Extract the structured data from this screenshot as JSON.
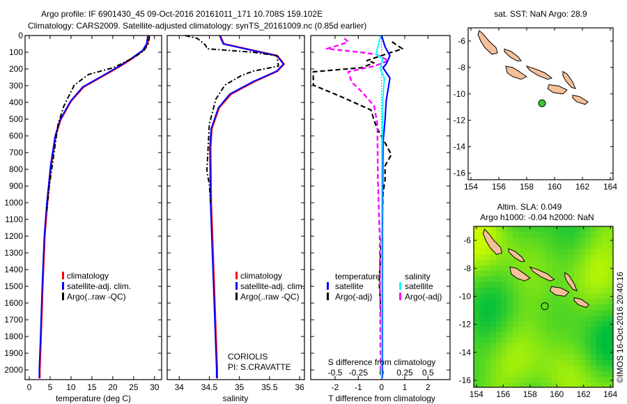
{
  "title": {
    "line1": "Argo profile: IF 6901430_45 09-Oct-2016 20161011_171 10.708S 159.102E",
    "line2": "Climatology: CARS2009. Satellite-adjusted climatology: synTS_20161009.nc (0.85d earlier)"
  },
  "colors": {
    "climatology": "#ff0000",
    "satellite": "#0000ff",
    "argo": "#000000",
    "salinity_satellite": "#00ffff",
    "salinity_argo": "#ff00ff",
    "land": "#f4c09a"
  },
  "chart_data": [
    {
      "type": "line",
      "title": "",
      "xlabel": "temperature (deg C)",
      "ylabel": "",
      "xlim": [
        -1,
        31.7
      ],
      "ylim": [
        2058,
        0
      ],
      "xticks": [
        0,
        5,
        10,
        15,
        20,
        25,
        30
      ],
      "yticks": [
        0,
        100,
        200,
        300,
        400,
        500,
        600,
        700,
        800,
        900,
        1000,
        1100,
        1200,
        1300,
        1400,
        1500,
        1600,
        1700,
        1800,
        1900,
        2000
      ],
      "legend": [
        "climatology",
        "satellite-adj. clim.",
        "Argo(..raw -QC)"
      ],
      "series": [
        {
          "name": "climatology",
          "points": [
            [
              28.6,
              0
            ],
            [
              28.3,
              50
            ],
            [
              27.3,
              90
            ],
            [
              26.7,
              100
            ],
            [
              24.5,
              140
            ],
            [
              21.8,
              183
            ],
            [
              16.8,
              254
            ],
            [
              13,
              308
            ],
            [
              10,
              392
            ],
            [
              7.5,
              504
            ],
            [
              6.3,
              600
            ],
            [
              5.2,
              779
            ],
            [
              4.3,
              1004
            ],
            [
              3.7,
              1200
            ],
            [
              3.2,
              1500
            ],
            [
              2.8,
              1800
            ],
            [
              2.5,
              2000
            ],
            [
              2.5,
              2050
            ]
          ]
        },
        {
          "name": "satellite-adj. clim.",
          "points": [
            [
              28.4,
              0
            ],
            [
              28.1,
              50
            ],
            [
              27.1,
              90
            ],
            [
              26.5,
              100
            ],
            [
              24.3,
              140
            ],
            [
              21.6,
              183
            ],
            [
              16.6,
              254
            ],
            [
              12.8,
              308
            ],
            [
              9.9,
              392
            ],
            [
              7.4,
              504
            ],
            [
              6.2,
              600
            ],
            [
              5.1,
              779
            ],
            [
              4.2,
              1004
            ],
            [
              3.6,
              1200
            ],
            [
              3.1,
              1500
            ],
            [
              2.7,
              1800
            ],
            [
              2.4,
              2000
            ],
            [
              2.4,
              2050
            ]
          ]
        },
        {
          "name": "Argo(..raw -QC)",
          "points": [
            [
              28.8,
              5
            ],
            [
              28.5,
              50
            ],
            [
              27.5,
              90
            ],
            [
              25.2,
              129
            ],
            [
              20.2,
              192
            ],
            [
              14.2,
              233
            ],
            [
              10.8,
              296
            ],
            [
              8.3,
              421
            ],
            [
              6.9,
              529
            ],
            [
              5.8,
              725
            ],
            [
              4.8,
              900
            ],
            [
              4.2,
              1050
            ]
          ]
        }
      ]
    },
    {
      "type": "line",
      "xlabel": "salinity",
      "xlim": [
        33.8,
        36.08
      ],
      "ylim": [
        2058,
        0
      ],
      "xticks": [
        34,
        34.5,
        35,
        35.5,
        36
      ],
      "legend": [
        "climatology",
        "satellite-adj. clim.",
        "Argo(..raw -QC)"
      ],
      "annotation": [
        "CORIOLIS",
        "PI: S.CRAVATTE"
      ],
      "series": [
        {
          "name": "climatology",
          "points": [
            [
              34.68,
              0
            ],
            [
              34.74,
              50
            ],
            [
              35.24,
              90
            ],
            [
              35.63,
              121
            ],
            [
              35.74,
              171
            ],
            [
              35.63,
              213
            ],
            [
              35.25,
              275
            ],
            [
              34.86,
              350
            ],
            [
              34.66,
              433
            ],
            [
              34.54,
              558
            ],
            [
              34.52,
              671
            ],
            [
              34.53,
              1004
            ],
            [
              34.56,
              1300
            ],
            [
              34.6,
              1700
            ],
            [
              34.63,
              2000
            ],
            [
              34.63,
              2050
            ]
          ]
        },
        {
          "name": "satellite-adj. clim.",
          "points": [
            [
              34.67,
              0
            ],
            [
              34.73,
              50
            ],
            [
              35.23,
              90
            ],
            [
              35.62,
              121
            ],
            [
              35.73,
              171
            ],
            [
              35.62,
              213
            ],
            [
              35.23,
              275
            ],
            [
              34.84,
              350
            ],
            [
              34.65,
              433
            ],
            [
              34.53,
              558
            ],
            [
              34.51,
              671
            ],
            [
              34.52,
              1004
            ],
            [
              34.55,
              1300
            ],
            [
              34.59,
              1700
            ],
            [
              34.62,
              2000
            ],
            [
              34.62,
              2050
            ]
          ]
        },
        {
          "name": "Argo(..raw -QC)",
          "points": [
            [
              34.1,
              0
            ],
            [
              34.3,
              17
            ],
            [
              34.44,
              58
            ],
            [
              34.46,
              79
            ],
            [
              35.23,
              100
            ],
            [
              35.62,
              121
            ],
            [
              35.65,
              183
            ],
            [
              35.23,
              213
            ],
            [
              35.04,
              238
            ],
            [
              34.76,
              296
            ],
            [
              34.61,
              379
            ],
            [
              34.5,
              529
            ],
            [
              34.46,
              808
            ],
            [
              34.5,
              892
            ],
            [
              34.52,
              1000
            ]
          ]
        }
      ]
    },
    {
      "type": "line",
      "xlabel": "T difference from climatology",
      "x2label": "S difference from climatology",
      "xlim": [
        -3.05,
        2.95
      ],
      "x2lim": [
        -0.7625,
        0.7375
      ],
      "ylim": [
        2058,
        0
      ],
      "xticks": [
        -2,
        -1,
        0,
        1,
        2
      ],
      "x2ticks": [
        -0.5,
        -0.25,
        0,
        0.25,
        0.5
      ],
      "legend_headers": [
        "temperature",
        "salinity"
      ],
      "legend": [
        "satellite",
        "Argo(-adj)",
        "satellite",
        "Argo(-adj)"
      ],
      "series": [
        {
          "name": "T satellite",
          "axis": "T",
          "points": [
            [
              0,
              0
            ],
            [
              0.15,
              67
            ],
            [
              0.36,
              121
            ],
            [
              0.2,
              171
            ],
            [
              0.06,
              192
            ],
            [
              0.36,
              254
            ],
            [
              0.2,
              392
            ],
            [
              0.15,
              504
            ],
            [
              0.06,
              642
            ],
            [
              0.04,
              1000
            ],
            [
              0.03,
              1500
            ],
            [
              0.03,
              2050
            ]
          ]
        },
        {
          "name": "T Argo(-adj)",
          "axis": "T",
          "points": [
            [
              0.45,
              38
            ],
            [
              0.9,
              79
            ],
            [
              0.15,
              113
            ],
            [
              -0.63,
              150
            ],
            [
              -0.33,
              163
            ],
            [
              -0.84,
              192
            ],
            [
              -2.94,
              217
            ],
            [
              -2.94,
              296
            ],
            [
              -1.65,
              371
            ],
            [
              -0.45,
              446
            ],
            [
              -0.33,
              504
            ],
            [
              -0.18,
              558
            ],
            [
              0.2,
              654
            ],
            [
              0.42,
              713
            ],
            [
              0.15,
              779
            ],
            [
              0.15,
              863
            ],
            [
              0.06,
              946
            ],
            [
              0,
              1200
            ],
            [
              -0.1,
              1480
            ],
            [
              -0.08,
              1520
            ],
            [
              0,
              1700
            ],
            [
              0.03,
              2000
            ]
          ]
        },
        {
          "name": "S satellite",
          "axis": "S",
          "points": [
            [
              -0.01,
              0
            ],
            [
              -0.06,
              113
            ],
            [
              0.015,
              140
            ],
            [
              -0.015,
              196
            ],
            [
              0.03,
              254
            ],
            [
              0.015,
              367
            ],
            [
              0.005,
              700
            ],
            [
              0,
              2050
            ]
          ]
        },
        {
          "name": "S Argo(-adj)",
          "axis": "S",
          "points": [
            [
              -0.4,
              17
            ],
            [
              -0.36,
              38
            ],
            [
              -0.46,
              58
            ],
            [
              -0.59,
              79
            ],
            [
              -0.23,
              100
            ],
            [
              -0.06,
              113
            ],
            [
              0.075,
              150
            ],
            [
              -0.08,
              183
            ],
            [
              -0.36,
              217
            ],
            [
              -0.32,
              279
            ],
            [
              -0.21,
              338
            ],
            [
              -0.08,
              421
            ],
            [
              -0.045,
              529
            ],
            [
              -0.04,
              838
            ],
            [
              -0.02,
              1200
            ],
            [
              -0.01,
              2000
            ]
          ]
        }
      ]
    }
  ],
  "maps": {
    "sst": {
      "title": "sat. SST: NaN Argo: 28.9"
    },
    "sla": {
      "title1": "Altim. SLA: 0.049",
      "title2": "Argo h1000: -0.04 h2000: NaN"
    },
    "lon_ticks": [
      154,
      156,
      158,
      160,
      162,
      164
    ],
    "lat_ticks": [
      -6,
      -8,
      -10,
      -12,
      -14,
      -16
    ],
    "lon_range": [
      153.8,
      164.2
    ],
    "lat_range": [
      -16.5,
      -5.0
    ],
    "argo_position": [
      159.102,
      -10.708
    ],
    "islands": [
      {
        "name": "bougainville",
        "coords": [
          [
            154.6,
            -5.2
          ],
          [
            154.9,
            -5.5
          ],
          [
            155.3,
            -6.0
          ],
          [
            155.8,
            -6.5
          ],
          [
            155.9,
            -6.9
          ],
          [
            155.5,
            -7.0
          ],
          [
            155.0,
            -6.5
          ],
          [
            154.7,
            -6.0
          ],
          [
            154.5,
            -5.5
          ]
        ]
      },
      {
        "name": "choiseul",
        "coords": [
          [
            156.4,
            -6.6
          ],
          [
            156.9,
            -6.8
          ],
          [
            157.4,
            -7.2
          ],
          [
            157.6,
            -7.5
          ],
          [
            157.3,
            -7.5
          ],
          [
            156.8,
            -7.2
          ],
          [
            156.4,
            -6.8
          ]
        ]
      },
      {
        "name": "santa-isabel",
        "coords": [
          [
            158.0,
            -7.9
          ],
          [
            158.6,
            -8.1
          ],
          [
            159.3,
            -8.4
          ],
          [
            159.8,
            -8.8
          ],
          [
            159.5,
            -8.9
          ],
          [
            158.8,
            -8.6
          ],
          [
            158.2,
            -8.2
          ]
        ]
      },
      {
        "name": "new-georgia",
        "coords": [
          [
            156.5,
            -7.9
          ],
          [
            157.0,
            -8.0
          ],
          [
            157.6,
            -8.4
          ],
          [
            158.0,
            -8.7
          ],
          [
            157.6,
            -8.9
          ],
          [
            157.0,
            -8.7
          ],
          [
            156.6,
            -8.4
          ]
        ]
      },
      {
        "name": "guadalcanal",
        "coords": [
          [
            159.6,
            -9.3
          ],
          [
            160.3,
            -9.4
          ],
          [
            160.9,
            -9.7
          ],
          [
            160.6,
            -10.0
          ],
          [
            159.9,
            -9.9
          ],
          [
            159.5,
            -9.6
          ]
        ]
      },
      {
        "name": "malaita",
        "coords": [
          [
            160.6,
            -8.3
          ],
          [
            160.9,
            -8.5
          ],
          [
            161.3,
            -9.1
          ],
          [
            161.5,
            -9.6
          ],
          [
            161.2,
            -9.5
          ],
          [
            160.8,
            -9.0
          ],
          [
            160.6,
            -8.6
          ]
        ]
      },
      {
        "name": "makira",
        "coords": [
          [
            161.3,
            -10.1
          ],
          [
            161.8,
            -10.2
          ],
          [
            162.4,
            -10.6
          ],
          [
            162.2,
            -10.8
          ],
          [
            161.6,
            -10.6
          ],
          [
            161.3,
            -10.3
          ]
        ]
      }
    ]
  },
  "credit": "©IMOS 16-Oct-2016 20:40:16"
}
